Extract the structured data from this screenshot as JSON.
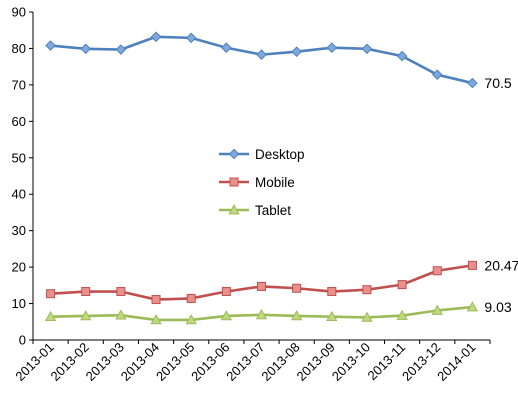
{
  "chart_data": {
    "type": "line",
    "title": "",
    "xlabel": "",
    "ylabel": "",
    "categories": [
      "2013-01",
      "2013-02",
      "2013-03",
      "2013-04",
      "2013-05",
      "2013-06",
      "2013-07",
      "2013-08",
      "2013-09",
      "2013-10",
      "2013-11",
      "2013-12",
      "2014-01"
    ],
    "ylim": [
      0,
      90
    ],
    "yticks": [
      0,
      10,
      20,
      30,
      40,
      50,
      60,
      70,
      80,
      90
    ],
    "grid": false,
    "legend_position": "center",
    "series": [
      {
        "name": "Desktop",
        "color": "#4F81BD",
        "fill": "#7FA9DC",
        "marker": "diamond",
        "values": [
          80.8,
          79.9,
          79.7,
          83.2,
          82.9,
          80.2,
          78.3,
          79.1,
          80.2,
          79.9,
          77.9,
          72.8,
          70.5
        ],
        "end_label": "70.5"
      },
      {
        "name": "Mobile",
        "color": "#C0504D",
        "fill": "#E8908C",
        "marker": "square",
        "values": [
          12.7,
          13.3,
          13.3,
          11.1,
          11.4,
          13.3,
          14.7,
          14.2,
          13.3,
          13.8,
          15.2,
          19.0,
          20.47
        ],
        "end_label": "20.47"
      },
      {
        "name": "Tablet",
        "color": "#9BBB59",
        "fill": "#BFD97F",
        "marker": "triangle",
        "values": [
          6.4,
          6.6,
          6.8,
          5.5,
          5.5,
          6.6,
          6.9,
          6.6,
          6.4,
          6.2,
          6.7,
          8.1,
          9.03
        ],
        "end_label": "9.03"
      }
    ]
  }
}
